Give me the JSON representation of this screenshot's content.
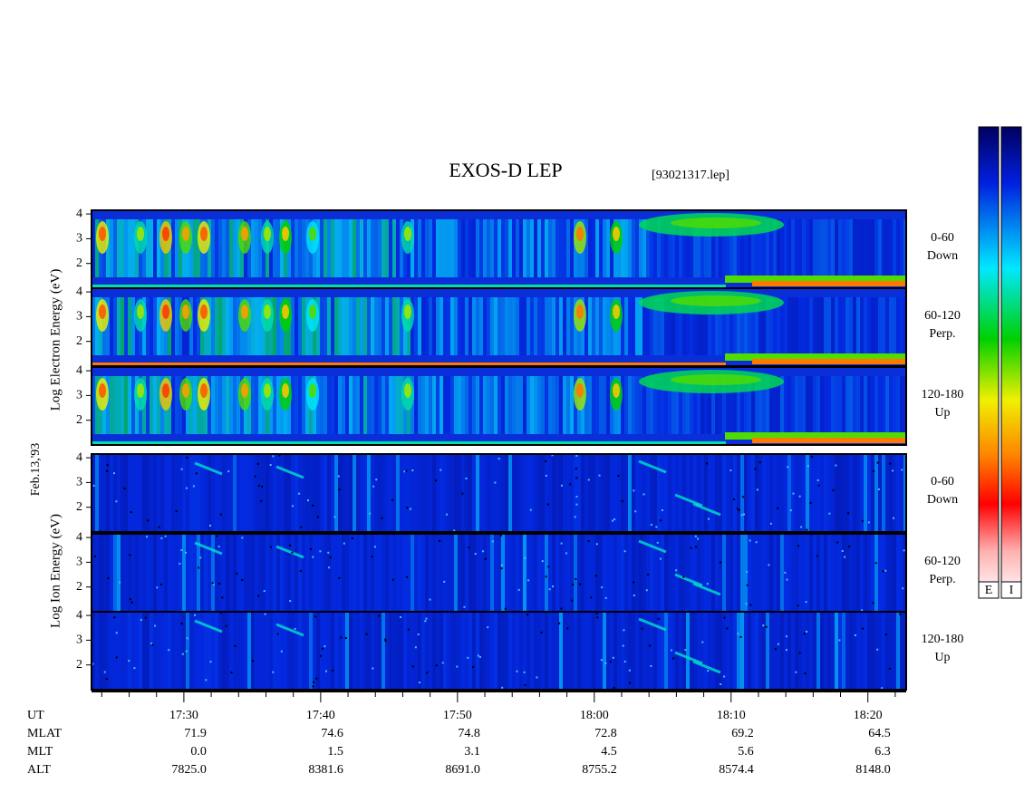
{
  "chart_data": {
    "type": "spectrogram",
    "title": "EXOS-D LEP",
    "file": "[93021317.lep]",
    "date_label": "Feb.13,'93",
    "electron_ylabel": "Log Electron Energy (eV)",
    "ion_ylabel": "Log Ion Energy (eV)",
    "panels": [
      {
        "species": "electron",
        "pitch": "0-60",
        "direction": "Down"
      },
      {
        "species": "electron",
        "pitch": "60-120",
        "direction": "Perp."
      },
      {
        "species": "electron",
        "pitch": "120-180",
        "direction": "Up"
      },
      {
        "species": "ion",
        "pitch": "0-60",
        "direction": "Down"
      },
      {
        "species": "ion",
        "pitch": "60-120",
        "direction": "Perp."
      },
      {
        "species": "ion",
        "pitch": "120-180",
        "direction": "Up"
      }
    ],
    "ylim": [
      1,
      4.15
    ],
    "yticks": [
      2,
      3,
      4
    ],
    "xlim": [
      1043.25,
      1102.8
    ],
    "x_label": "UT",
    "xticks": [
      {
        "value": 1050,
        "label": "17:30"
      },
      {
        "value": 1060,
        "label": "17:40"
      },
      {
        "value": 1070,
        "label": "17:50"
      },
      {
        "value": 1080,
        "label": "18:00"
      },
      {
        "value": 1090,
        "label": "18:10"
      },
      {
        "value": 1100,
        "label": "18:20"
      }
    ],
    "x_minor_ticks": [
      1044,
      1046,
      1048,
      1052,
      1054,
      1056,
      1058,
      1062,
      1064,
      1066,
      1068,
      1072,
      1074,
      1076,
      1078,
      1082,
      1084,
      1086,
      1088,
      1092,
      1094,
      1096,
      1098,
      1102
    ],
    "ephemeris": [
      {
        "label": "MLAT",
        "values": [
          "71.9",
          "74.6",
          "74.8",
          "72.8",
          "69.2",
          "64.5"
        ]
      },
      {
        "label": "MLT",
        "values": [
          "0.0",
          "1.5",
          "3.1",
          "4.5",
          "5.6",
          "6.3"
        ]
      },
      {
        "label": "ALT",
        "values": [
          "7825.0",
          "8381.6",
          "8691.0",
          "8755.2",
          "8574.4",
          "8148.0"
        ]
      }
    ],
    "colorbars": [
      "E",
      "I"
    ]
  }
}
